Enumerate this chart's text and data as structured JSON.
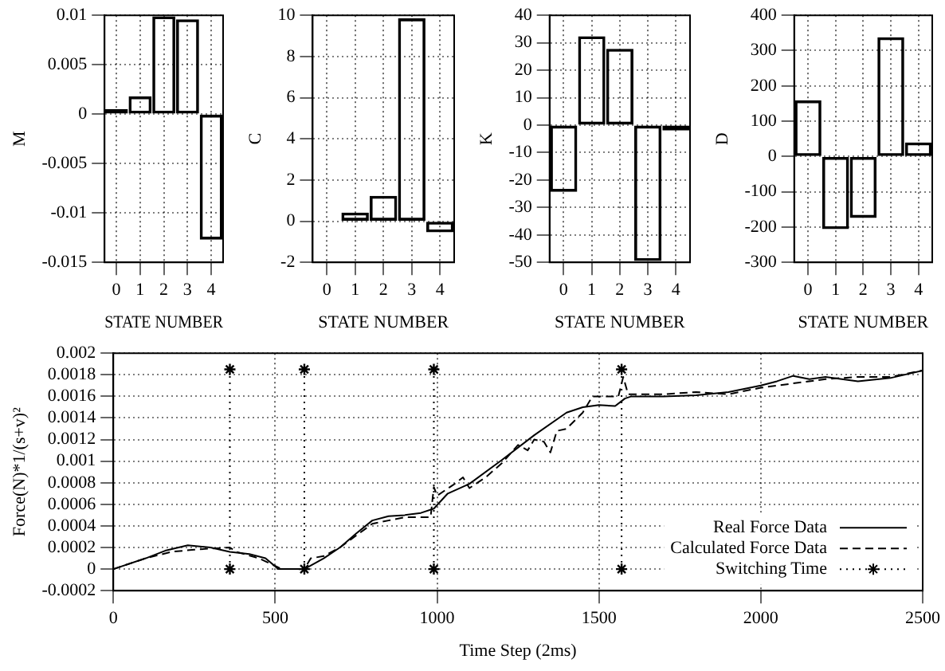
{
  "chart_data": [
    {
      "type": "bar",
      "ylabel": "M",
      "xlabel": "STATE NUMBER",
      "categories": [
        "0",
        "1",
        "2",
        "3",
        "4"
      ],
      "values": [
        0.0005,
        0.0018,
        0.0099,
        0.0096,
        -0.0127
      ],
      "color": "#000000",
      "ylim": [
        -0.015,
        0.01
      ],
      "yticks": [
        -0.015,
        -0.01,
        -0.005,
        0,
        0.005,
        0.01
      ],
      "grid": true
    },
    {
      "type": "bar",
      "ylabel": "C",
      "xlabel": "STATE NUMBER",
      "categories": [
        "0",
        "1",
        "2",
        "3",
        "4"
      ],
      "values": [
        0,
        0.42,
        1.23,
        9.85,
        -0.54
      ],
      "color": "#000000",
      "ylim": [
        -2,
        10
      ],
      "yticks": [
        -2,
        0,
        2,
        4,
        6,
        8,
        10
      ],
      "grid": true
    },
    {
      "type": "bar",
      "ylabel": "K",
      "xlabel": "STATE NUMBER",
      "categories": [
        "0",
        "1",
        "2",
        "3",
        "4"
      ],
      "values": [
        -24.3,
        32.4,
        27.8,
        -49.5,
        -2
      ],
      "color": "#000000",
      "ylim": [
        -50,
        40
      ],
      "yticks": [
        -50,
        -40,
        -30,
        -20,
        -10,
        0,
        10,
        20,
        30,
        40
      ],
      "grid": true
    },
    {
      "type": "bar",
      "ylabel": "D",
      "xlabel": "STATE NUMBER",
      "categories": [
        "0",
        "1",
        "2",
        "3",
        "4"
      ],
      "values": [
        159,
        -206,
        -174,
        338,
        40
      ],
      "color": "#000000",
      "ylim": [
        -300,
        400
      ],
      "yticks": [
        -300,
        -200,
        -100,
        0,
        100,
        200,
        300,
        400
      ],
      "grid": true
    },
    {
      "type": "line",
      "xlabel": "Time Step (2ms)",
      "ylabel": "Force(N)*1/(s+v)²",
      "xlim": [
        0,
        2500
      ],
      "xticks": [
        0,
        500,
        1000,
        1500,
        2000,
        2500
      ],
      "ylim": [
        -0.0002,
        0.002
      ],
      "yticks": [
        -0.0002,
        0,
        0.0002,
        0.0004,
        0.0006,
        0.0008,
        0.001,
        0.0012,
        0.0014,
        0.0016,
        0.0018,
        0.002
      ],
      "grid": true,
      "legend": "bottom right",
      "series": [
        {
          "name": "Real Force Data",
          "color": "#000000",
          "line_style": "solid",
          "marker": "none",
          "x": [
            0,
            100,
            160,
            230,
            300,
            360,
            420,
            470,
            510,
            540,
            590,
            650,
            700,
            750,
            800,
            850,
            900,
            950,
            990,
            1033,
            1100,
            1200,
            1300,
            1400,
            1450,
            1500,
            1550,
            1580,
            1600,
            1700,
            1800,
            1900,
            2000,
            2050,
            2100,
            2150,
            2200,
            2300,
            2400,
            2500
          ],
          "values": [
            0,
            0.0001,
            0.00017,
            0.00022,
            0.0002,
            0.00016,
            0.00014,
            0.0001,
            0,
            0,
            0,
            0.0001,
            0.0002,
            0.00033,
            0.00045,
            0.00049,
            0.0005,
            0.00052,
            0.00056,
            0.0007,
            0.00079,
            0.00101,
            0.00124,
            0.00145,
            0.0015,
            0.00152,
            0.00151,
            0.00158,
            0.0016,
            0.0016,
            0.00161,
            0.00164,
            0.0017,
            0.00174,
            0.00179,
            0.00176,
            0.00178,
            0.00174,
            0.00177,
            0.00184
          ]
        },
        {
          "name": "Calculated Force Data",
          "color": "#000000",
          "line_style": "dashed",
          "marker": "none",
          "x": [
            0,
            100,
            180,
            250,
            300,
            360,
            380,
            450,
            520,
            590,
            610,
            650,
            700,
            800,
            900,
            980,
            990,
            1000,
            1050,
            1080,
            1100,
            1150,
            1200,
            1250,
            1280,
            1300,
            1330,
            1350,
            1370,
            1400,
            1450,
            1480,
            1520,
            1560,
            1575,
            1590,
            1700,
            1800,
            1900,
            2000,
            2100,
            2200,
            2300,
            2400,
            2500
          ],
          "values": [
            0,
            0.0001,
            0.00016,
            0.00018,
            0.00019,
            0.0002,
            0.00016,
            0.0001,
            0,
            0,
            0.0001,
            0.00012,
            0.0002,
            0.00042,
            0.00048,
            0.00048,
            0.00076,
            0.00068,
            0.00078,
            0.00085,
            0.00075,
            0.00085,
            0.00098,
            0.00115,
            0.0011,
            0.0012,
            0.00118,
            0.00108,
            0.00128,
            0.0013,
            0.00145,
            0.0016,
            0.0016,
            0.0016,
            0.00178,
            0.00162,
            0.00162,
            0.00164,
            0.00162,
            0.00168,
            0.00172,
            0.00176,
            0.00178,
            0.00178,
            0.00184
          ]
        },
        {
          "name": "Switching Time",
          "color": "#000000",
          "line_style": "dotted",
          "marker": "cross",
          "x": [
            360,
            360
          ],
          "values": [
            0,
            0.00185
          ]
        },
        {
          "color": "#000000",
          "line_style": "dotted",
          "marker": "cross",
          "x": [
            590,
            590
          ],
          "values": [
            0,
            0.00185
          ]
        },
        {
          "color": "#000000",
          "line_style": "dotted",
          "marker": "cross",
          "x": [
            990,
            990
          ],
          "values": [
            0,
            0.00185
          ]
        },
        {
          "color": "#000000",
          "line_style": "dotted",
          "marker": "cross",
          "x": [
            1570,
            1570
          ],
          "values": [
            0,
            0.00185
          ]
        }
      ]
    }
  ]
}
